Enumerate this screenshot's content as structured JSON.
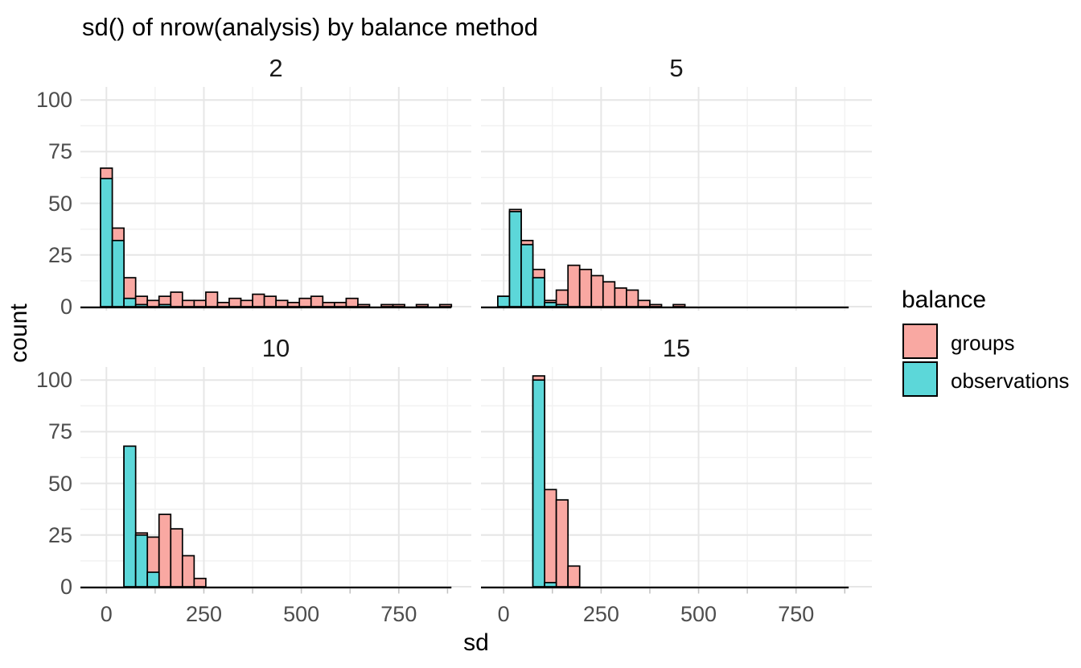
{
  "title": "sd() of nrow(analysis) by balance method",
  "axis": {
    "x_title": "sd",
    "y_title": "count",
    "x_ticks": [
      "0",
      "250",
      "500",
      "750"
    ],
    "y_ticks": [
      "0",
      "25",
      "50",
      "75",
      "100"
    ]
  },
  "legend": {
    "title": "balance",
    "items": [
      {
        "label": "groups",
        "color": "#F9A8A2"
      },
      {
        "label": "observations",
        "color": "#5CD7D9"
      }
    ]
  },
  "style": {
    "bar_outline": "#000000",
    "grid_major": "#E6E6E6",
    "grid_minor": "#F2F2F2",
    "tick_mark": "#C2C2C2",
    "baseline": "#000000"
  },
  "chart_data": {
    "type": "bar",
    "subtype": "faceted-histogram",
    "title": "sd() of nrow(analysis) by balance method",
    "xlabel": "sd",
    "ylabel": "count",
    "xlim": [
      -66,
      937
    ],
    "ylim": [
      0,
      107
    ],
    "x_major_ticks": [
      0,
      250,
      500,
      750
    ],
    "x_minor_ticks": [
      125,
      375,
      625,
      875
    ],
    "y_major_ticks": [
      0,
      25,
      50,
      75,
      100
    ],
    "y_minor_ticks": [
      12.5,
      37.5,
      62.5,
      87.5
    ],
    "binwidth": 30,
    "grid": true,
    "legend_title": "balance",
    "legend_position": "right",
    "series_colors": {
      "groups": "#F9A8A2",
      "observations": "#5CD7D9"
    },
    "facets": [
      {
        "label": "2",
        "series": [
          {
            "name": "groups",
            "bins": [
              [
                0,
                67
              ],
              [
                30,
                38
              ],
              [
                60,
                14
              ],
              [
                90,
                5
              ],
              [
                120,
                3
              ],
              [
                150,
                5
              ],
              [
                180,
                7
              ],
              [
                210,
                3
              ],
              [
                240,
                3
              ],
              [
                270,
                7
              ],
              [
                300,
                2
              ],
              [
                330,
                4
              ],
              [
                360,
                3
              ],
              [
                390,
                6
              ],
              [
                420,
                5
              ],
              [
                450,
                3
              ],
              [
                480,
                2
              ],
              [
                510,
                4
              ],
              [
                540,
                5
              ],
              [
                570,
                2
              ],
              [
                600,
                2
              ],
              [
                630,
                4
              ],
              [
                660,
                1
              ],
              [
                720,
                1
              ],
              [
                750,
                1
              ],
              [
                810,
                1
              ],
              [
                870,
                1
              ]
            ]
          },
          {
            "name": "observations",
            "bins": [
              [
                0,
                62
              ],
              [
                30,
                32
              ],
              [
                60,
                4
              ],
              [
                90,
                1
              ],
              [
                150,
                1
              ]
            ]
          }
        ]
      },
      {
        "label": "5",
        "series": [
          {
            "name": "groups",
            "bins": [
              [
                0,
                5
              ],
              [
                30,
                47
              ],
              [
                60,
                32
              ],
              [
                90,
                18
              ],
              [
                120,
                3
              ],
              [
                150,
                8
              ],
              [
                180,
                20
              ],
              [
                210,
                18
              ],
              [
                240,
                15
              ],
              [
                270,
                12
              ],
              [
                300,
                9
              ],
              [
                330,
                8
              ],
              [
                360,
                3
              ],
              [
                390,
                1
              ],
              [
                450,
                1
              ]
            ]
          },
          {
            "name": "observations",
            "bins": [
              [
                0,
                5
              ],
              [
                30,
                46
              ],
              [
                60,
                30
              ],
              [
                90,
                14
              ],
              [
                120,
                2
              ],
              [
                150,
                1
              ]
            ]
          }
        ]
      },
      {
        "label": "10",
        "series": [
          {
            "name": "groups",
            "bins": [
              [
                60,
                68
              ],
              [
                90,
                26
              ],
              [
                120,
                24
              ],
              [
                150,
                35
              ],
              [
                180,
                28
              ],
              [
                210,
                15
              ],
              [
                240,
                4
              ]
            ]
          },
          {
            "name": "observations",
            "bins": [
              [
                60,
                68
              ],
              [
                90,
                25
              ],
              [
                120,
                7
              ]
            ]
          }
        ]
      },
      {
        "label": "15",
        "series": [
          {
            "name": "groups",
            "bins": [
              [
                90,
                102
              ],
              [
                120,
                47
              ],
              [
                150,
                42
              ],
              [
                180,
                10
              ]
            ]
          },
          {
            "name": "observations",
            "bins": [
              [
                90,
                100
              ],
              [
                120,
                2
              ]
            ]
          }
        ]
      }
    ]
  }
}
